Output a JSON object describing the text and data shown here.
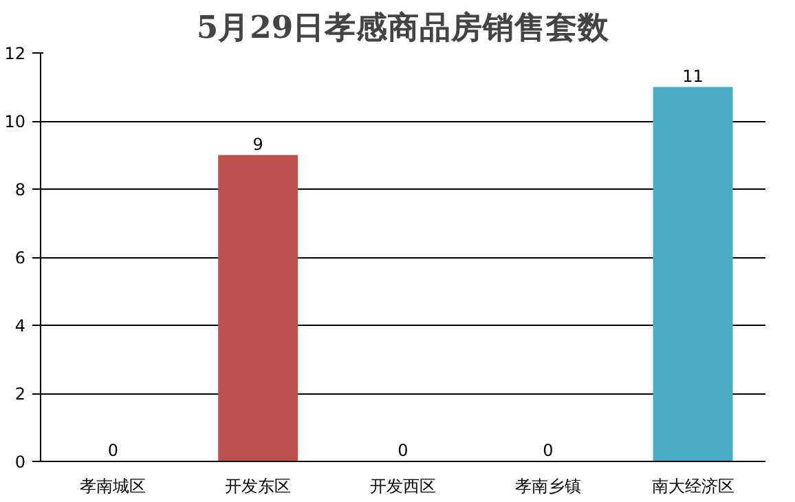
{
  "chart_data": {
    "type": "bar",
    "title": "5月29日孝感商品房销售套数",
    "categories": [
      "孝南城区",
      "开发东区",
      "开发西区",
      "孝南乡镇",
      "南大经济区"
    ],
    "values": [
      0,
      9,
      0,
      0,
      11
    ],
    "colors": [
      "#4f81bd",
      "#c0504d",
      "#9bbb59",
      "#8064a2",
      "#4bacc6"
    ],
    "ylim": [
      0,
      12
    ],
    "yticks": [
      0,
      2,
      4,
      6,
      8,
      10,
      12
    ],
    "grid": "y",
    "data_labels": true
  }
}
